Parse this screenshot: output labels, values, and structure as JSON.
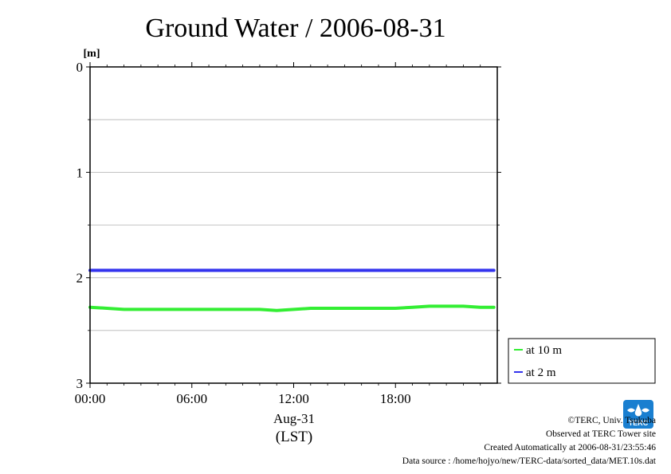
{
  "chart_data": {
    "type": "line",
    "title": "Ground Water / 2006-08-31",
    "ylabel": "[m]",
    "xlabel_date": "Aug-31",
    "xlabel_tz": "(LST)",
    "ylim": [
      0,
      3
    ],
    "y_inverted": true,
    "y_ticks": [
      "0",
      "1",
      "2",
      "3"
    ],
    "y_minor": [
      0.5,
      1.5,
      2.5
    ],
    "x_ticks": [
      {
        "h": 0,
        "label": "00:00"
      },
      {
        "h": 6,
        "label": "06:00"
      },
      {
        "h": 12,
        "label": "12:00"
      },
      {
        "h": 18,
        "label": "18:00"
      }
    ],
    "xlim_hours": [
      0,
      24
    ],
    "grid": true,
    "legend_placement": "right-bottom",
    "series": [
      {
        "name": "at 10 m",
        "color": "#33ee33",
        "x": [
          0,
          1,
          2,
          3,
          4,
          5,
          6,
          7,
          8,
          9,
          10,
          11,
          12,
          13,
          14,
          15,
          16,
          17,
          18,
          19,
          20,
          21,
          22,
          23,
          23.8
        ],
        "y": [
          2.28,
          2.29,
          2.3,
          2.3,
          2.3,
          2.3,
          2.3,
          2.3,
          2.3,
          2.3,
          2.3,
          2.31,
          2.3,
          2.29,
          2.29,
          2.29,
          2.29,
          2.29,
          2.29,
          2.28,
          2.27,
          2.27,
          2.27,
          2.28,
          2.28
        ]
      },
      {
        "name": "at 2 m",
        "color": "#3333ee",
        "x": [
          0,
          4,
          8,
          12,
          16,
          20,
          23.8
        ],
        "y": [
          1.93,
          1.93,
          1.93,
          1.93,
          1.93,
          1.93,
          1.93
        ]
      }
    ]
  },
  "credits": {
    "copyright": "©TERC, Univ. Tsukuba",
    "observed": "Observed at TERC Tower site",
    "created": "Created Automatically at 2006-08-31/23:55:46",
    "source": "Data source : /home/hojyo/new/TERC-data/sorted_data/MET.10s.dat"
  },
  "logo": {
    "text": "TERC"
  }
}
